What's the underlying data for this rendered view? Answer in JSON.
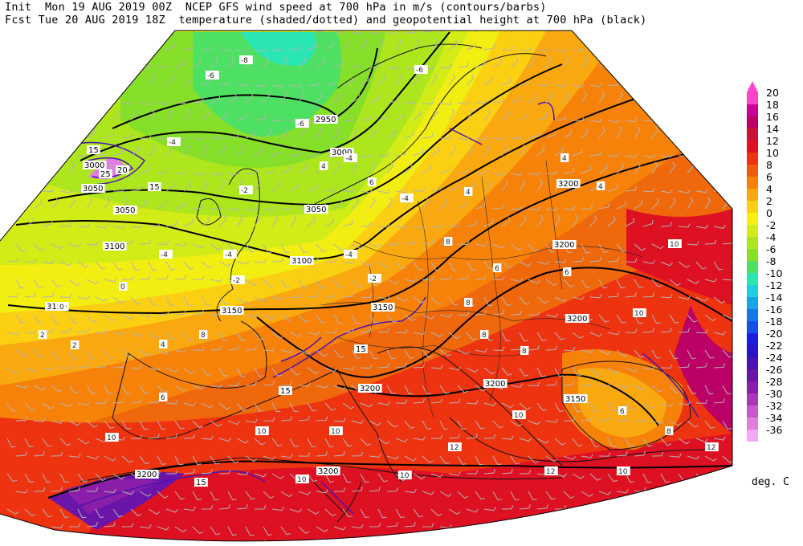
{
  "header": {
    "line1": "Init  Mon 19 AUG 2019 00Z  NCEP GFS wind speed at 700 hPa in m/s (contours/barbs)",
    "line2": "Fcst Tue 20 AUG 2019 18Z  temperature (shaded/dotted) and geopotential height at 700 hPa (black)"
  },
  "colorbar": {
    "units": "deg. C",
    "levels": [
      "20",
      "18",
      "16",
      "14",
      "12",
      "10",
      "8",
      "6",
      "4",
      "2",
      "0",
      "-2",
      "-4",
      "-6",
      "-8",
      "-10",
      "-12",
      "-14",
      "-16",
      "-18",
      "-20",
      "-22",
      "-24",
      "-26",
      "-28",
      "-30",
      "-32",
      "-34",
      "-36"
    ],
    "colors": [
      "#ff44cc",
      "#cc0099",
      "#bb0066",
      "#cc1133",
      "#dd1122",
      "#ee3311",
      "#f25a0c",
      "#f7820a",
      "#faa810",
      "#fcd012",
      "#f5f012",
      "#d2ec18",
      "#aee61e",
      "#86df28",
      "#4ee062",
      "#2ae6b4",
      "#1ecfe0",
      "#16a6e6",
      "#1478e6",
      "#1450e6",
      "#1a1ee0",
      "#2b14c8",
      "#4b12b4",
      "#6b14a8",
      "#8b1ea8",
      "#aa36b8",
      "#c858cc",
      "#e07ee0",
      "#f2a8f2"
    ]
  },
  "geopotential_labels": [
    "2950",
    "3000",
    "3050",
    "3050",
    "3100",
    "3100",
    "3150",
    "3150",
    "3150",
    "3200",
    "3200",
    "3200",
    "3200",
    "3200",
    "3150",
    "3200",
    "3200",
    "3000",
    "3050"
  ],
  "windspeed_labels": [
    "15",
    "15",
    "20",
    "15",
    "25",
    "15",
    "15"
  ],
  "temperature_labels": [
    "-8",
    "-6",
    "-6",
    "-4",
    "-6",
    "-4",
    "-2",
    "-4",
    "-4",
    "-4",
    "-4",
    "-2",
    "0",
    "-2",
    "0",
    "2",
    "2",
    "4",
    "4",
    "4",
    "4",
    "6",
    "6",
    "6",
    "8",
    "8",
    "6",
    "8",
    "10",
    "10",
    "10",
    "10",
    "10",
    "10",
    "10",
    "12",
    "12",
    "8",
    "10",
    "12",
    "4",
    "6",
    "8",
    "8",
    "10"
  ]
}
